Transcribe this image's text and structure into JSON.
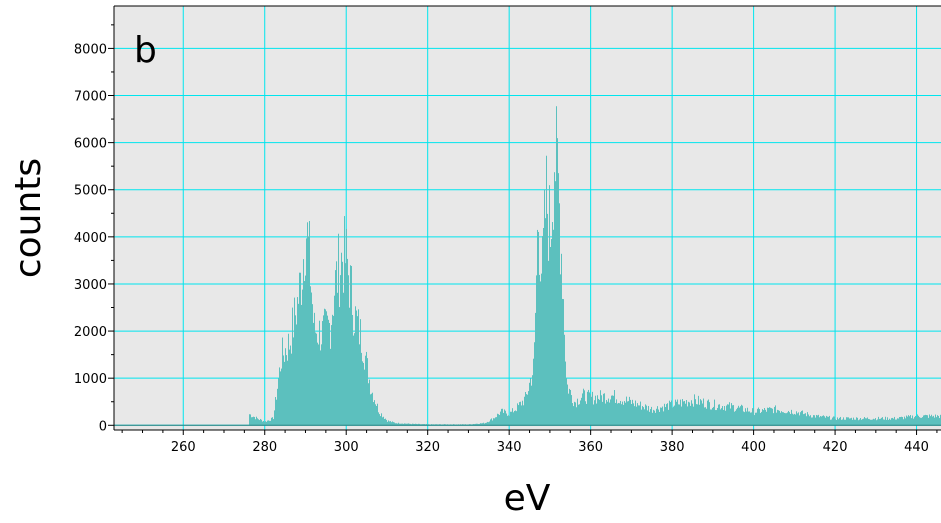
{
  "chart_data": {
    "type": "bar",
    "panel_label": "b",
    "xlabel": "eV",
    "ylabel": "counts",
    "xlim": [
      243,
      446
    ],
    "ylim": [
      -100,
      8900
    ],
    "x_ticks": [
      260,
      280,
      300,
      320,
      340,
      360,
      380,
      400,
      420,
      440
    ],
    "y_ticks": [
      0,
      1000,
      2000,
      3000,
      4000,
      5000,
      6000,
      7000,
      8000
    ],
    "grid": true,
    "bar_color": "#5cc0be",
    "grid_color": "#00e5ee",
    "plot_background": "#e8e8e8",
    "spectrum": {
      "x": [
        276,
        278,
        280,
        282,
        284,
        286,
        288,
        289,
        290,
        291,
        292,
        294,
        296,
        297,
        298,
        299,
        300,
        301,
        302,
        304,
        306,
        308,
        310,
        312,
        316,
        320,
        324,
        330,
        334,
        336,
        338,
        340,
        342,
        344,
        346,
        347,
        348,
        349,
        350,
        351,
        352,
        353,
        354,
        356,
        358,
        360,
        365,
        370,
        375,
        380,
        385,
        390,
        395,
        400,
        405,
        410,
        415,
        420,
        425,
        430,
        435,
        440,
        446
      ],
      "values": [
        250,
        150,
        80,
        150,
        1500,
        1800,
        2700,
        3300,
        4400,
        3500,
        2100,
        2000,
        2200,
        3000,
        3400,
        3700,
        3600,
        3000,
        2400,
        1800,
        800,
        300,
        100,
        50,
        30,
        20,
        20,
        20,
        50,
        150,
        300,
        250,
        400,
        600,
        1300,
        4600,
        3300,
        5000,
        4200,
        6000,
        5200,
        3300,
        900,
        500,
        650,
        600,
        650,
        500,
        350,
        450,
        550,
        450,
        400,
        300,
        350,
        300,
        200,
        150,
        150,
        150,
        150,
        200,
        200
      ]
    }
  }
}
